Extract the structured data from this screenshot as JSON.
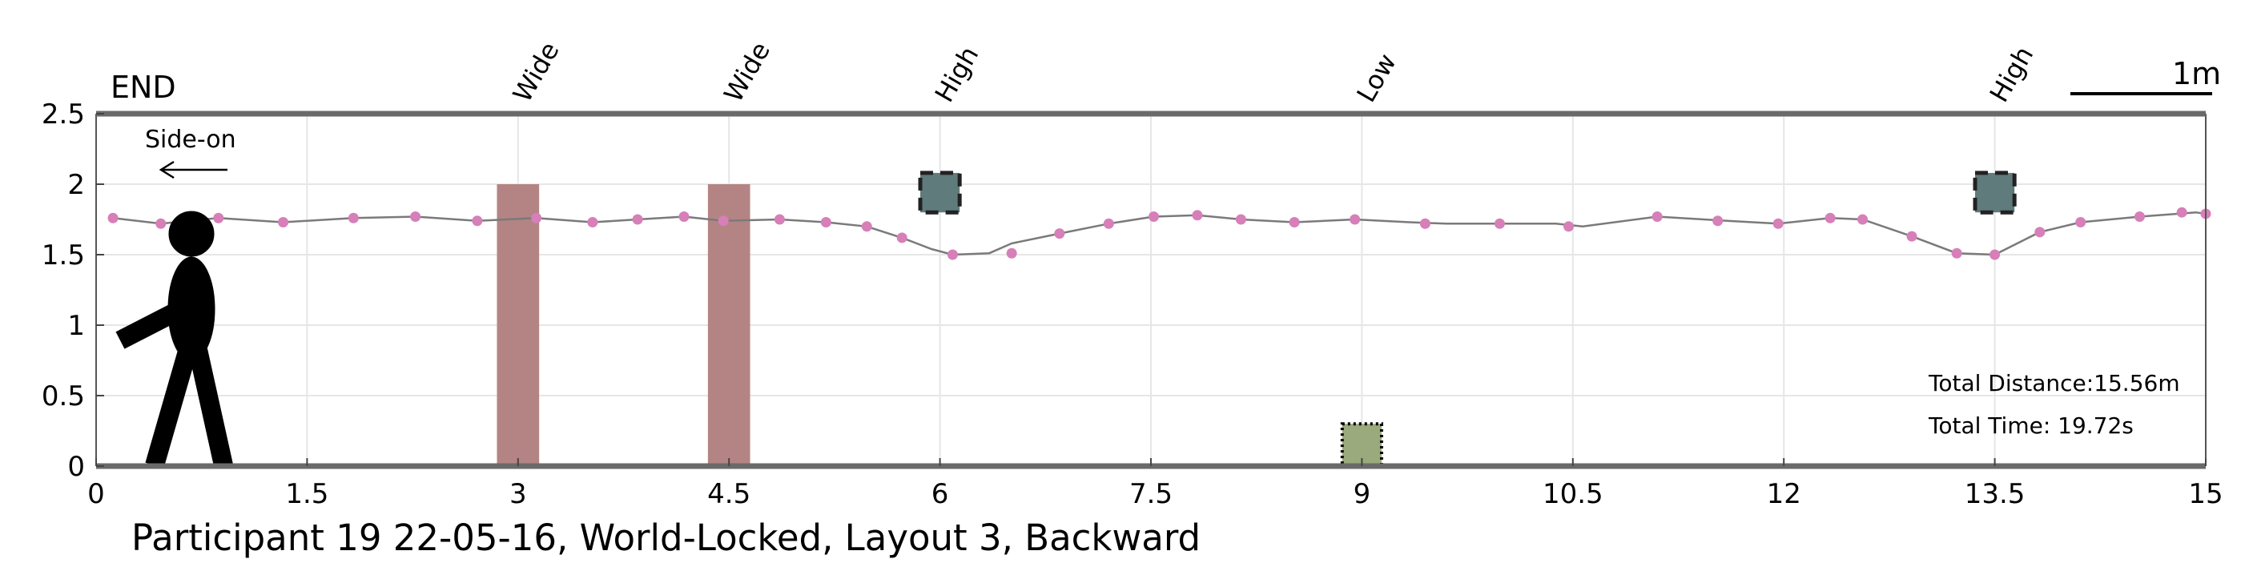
{
  "chart_data": {
    "type": "line",
    "title": "Participant 19 22-05-16, World-Locked, Layout 3, Backward",
    "xlim": [
      0,
      15
    ],
    "ylim": [
      0,
      2.5
    ],
    "x_ticks": [
      0,
      1.5,
      3,
      4.5,
      6,
      7.5,
      9,
      10.5,
      12,
      13.5,
      15
    ],
    "x_tick_labels": [
      "0",
      "1.5",
      "3",
      "4.5",
      "6",
      "7.5",
      "9",
      "10.5",
      "12",
      "13.5",
      "15"
    ],
    "y_ticks": [
      0,
      0.5,
      1,
      1.5,
      2,
      2.5
    ],
    "y_tick_labels": [
      "0",
      "0.5",
      "1",
      "1.5",
      "2",
      "2.5"
    ],
    "grid": true,
    "end_label": "END",
    "direction_label": "Side-on",
    "scale_bar_label": "1m",
    "obstacles": [
      {
        "label": "Wide",
        "x_start": 2.85,
        "x_end": 3.15,
        "y_bottom": 0,
        "y_top": 2.0,
        "color": "#b48484"
      },
      {
        "label": "Wide",
        "x_start": 4.35,
        "x_end": 4.65,
        "y_bottom": 0,
        "y_top": 2.0,
        "color": "#b48484"
      },
      {
        "label": "High",
        "x_start": 5.86,
        "x_end": 6.14,
        "y_bottom": 1.8,
        "y_top": 2.08,
        "color": "#5f7b7b"
      },
      {
        "label": "Low",
        "x_start": 8.86,
        "x_end": 9.14,
        "y_bottom": 0,
        "y_top": 0.3,
        "color": "#9aaa7c"
      },
      {
        "label": "High",
        "x_start": 13.36,
        "x_end": 13.64,
        "y_bottom": 1.8,
        "y_top": 2.08,
        "color": "#5f7b7b"
      }
    ],
    "series": [
      {
        "line_color": "#7a7a7a",
        "marker_color": "#d67fb8",
        "x": [
          0.12,
          0.46,
          0.87,
          1.33,
          1.83,
          2.27,
          2.71,
          3.13,
          3.53,
          3.85,
          4.18,
          4.46,
          4.86,
          5.19,
          5.48,
          5.73,
          5.94,
          6.09,
          6.35,
          6.51,
          6.85,
          7.2,
          7.52,
          7.83,
          8.14,
          8.52,
          8.95,
          9.34,
          9.6,
          10.02,
          10.38,
          10.57,
          11.1,
          11.6,
          11.96,
          12.33,
          12.56,
          12.91,
          13.23,
          13.5,
          13.82,
          14.11,
          14.53,
          14.93,
          15.0
        ],
        "y": [
          1.76,
          1.72,
          1.76,
          1.73,
          1.76,
          1.77,
          1.74,
          1.76,
          1.73,
          1.75,
          1.77,
          1.74,
          1.75,
          1.73,
          1.7,
          1.62,
          1.54,
          1.5,
          1.51,
          1.58,
          1.65,
          1.72,
          1.77,
          1.78,
          1.75,
          1.73,
          1.75,
          1.73,
          1.72,
          1.72,
          1.72,
          1.7,
          1.77,
          1.74,
          1.72,
          1.76,
          1.75,
          1.63,
          1.51,
          1.5,
          1.66,
          1.73,
          1.77,
          1.8,
          1.79
        ],
        "markers_x": [
          0.12,
          0.46,
          0.87,
          1.33,
          1.83,
          2.27,
          2.71,
          3.13,
          3.53,
          3.85,
          4.18,
          4.46,
          4.86,
          5.19,
          5.48,
          5.73,
          6.09,
          6.51,
          6.85,
          7.2,
          7.52,
          7.83,
          8.14,
          8.52,
          8.95,
          9.45,
          9.98,
          10.47,
          11.1,
          11.53,
          11.96,
          12.33,
          12.56,
          12.91,
          13.23,
          13.5,
          13.82,
          14.11,
          14.53,
          14.83,
          15.0
        ],
        "markers_y": [
          1.76,
          1.72,
          1.76,
          1.73,
          1.76,
          1.77,
          1.74,
          1.76,
          1.73,
          1.75,
          1.77,
          1.74,
          1.75,
          1.73,
          1.7,
          1.62,
          1.5,
          1.51,
          1.65,
          1.72,
          1.77,
          1.78,
          1.75,
          1.73,
          1.75,
          1.72,
          1.72,
          1.7,
          1.77,
          1.74,
          1.72,
          1.76,
          1.75,
          1.63,
          1.51,
          1.5,
          1.66,
          1.73,
          1.77,
          1.8,
          1.79
        ]
      }
    ],
    "annotations": {
      "total_distance": "Total Distance:15.56m",
      "total_time": "Total Time: 19.72s"
    }
  }
}
